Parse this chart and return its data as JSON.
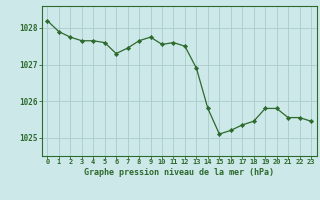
{
  "hours": [
    0,
    1,
    2,
    3,
    4,
    5,
    6,
    7,
    8,
    9,
    10,
    11,
    12,
    13,
    14,
    15,
    16,
    17,
    18,
    19,
    20,
    21,
    22,
    23
  ],
  "pressure": [
    1028.2,
    1027.9,
    1027.75,
    1027.65,
    1027.65,
    1027.6,
    1027.3,
    1027.45,
    1027.65,
    1027.75,
    1027.55,
    1027.6,
    1027.5,
    1026.9,
    1025.8,
    1025.1,
    1025.2,
    1025.35,
    1025.45,
    1025.8,
    1025.8,
    1025.55,
    1025.55,
    1025.45
  ],
  "line_color": "#2d6a2d",
  "marker_color": "#2d6a2d",
  "bg_color": "#cce8e8",
  "grid_color": "#aacccc",
  "axis_color": "#2d6a2d",
  "tick_color": "#2d6a2d",
  "xlabel": "Graphe pression niveau de la mer (hPa)",
  "ylim": [
    1024.5,
    1028.6
  ],
  "yticks": [
    1025,
    1026,
    1027,
    1028
  ],
  "xticks": [
    0,
    1,
    2,
    3,
    4,
    5,
    6,
    7,
    8,
    9,
    10,
    11,
    12,
    13,
    14,
    15,
    16,
    17,
    18,
    19,
    20,
    21,
    22,
    23
  ]
}
